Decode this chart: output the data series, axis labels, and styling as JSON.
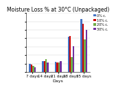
{
  "title": "Moisture Loss % at 30°C (Unpackaged)",
  "xlabel": "Days",
  "categories": [
    "7 days",
    "14 days",
    "21 days",
    "28 days",
    "35 days"
  ],
  "series_labels": [
    "0% c.",
    "10% c.",
    "20% c.",
    "30% c."
  ],
  "series_colors": [
    "#4472C4",
    "#CC0000",
    "#70AD47",
    "#7030A0"
  ],
  "values": [
    [
      1.0,
      1.3,
      1.2,
      4.2,
      6.3
    ],
    [
      0.9,
      1.3,
      1.1,
      4.3,
      5.7
    ],
    [
      0.7,
      1.5,
      1.1,
      1.8,
      3.9
    ],
    [
      0.6,
      1.1,
      1.3,
      3.1,
      5.0
    ]
  ],
  "ylim": [
    0,
    7
  ],
  "background_color": "#FFFFFF",
  "plot_bg": "#F0F0F0",
  "title_fontsize": 5.5,
  "label_fontsize": 4.5,
  "tick_fontsize": 4.0,
  "legend_fontsize": 3.5,
  "bar_width": 0.13
}
